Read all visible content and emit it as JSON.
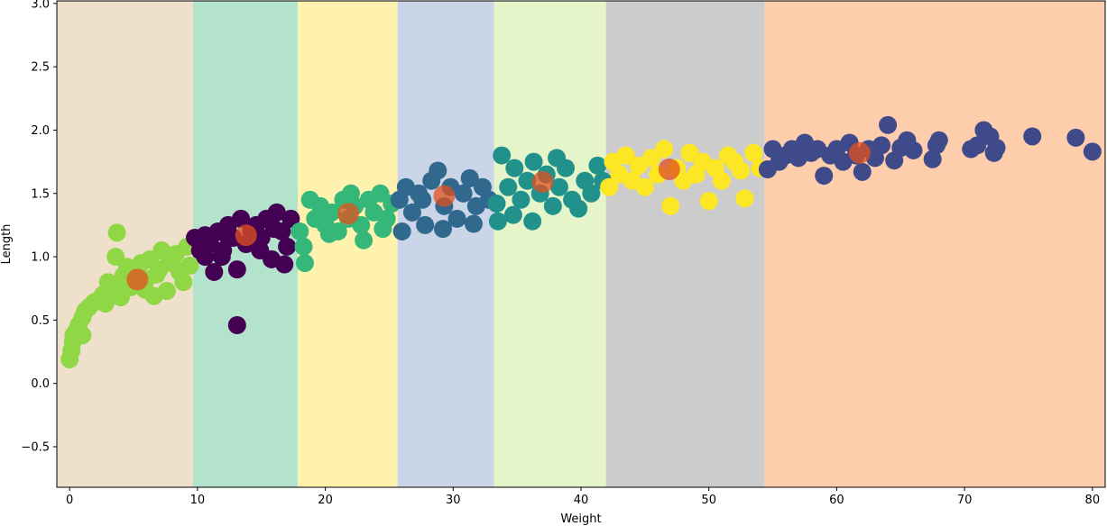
{
  "chart_data": {
    "type": "scatter",
    "title": "",
    "xlabel": "Weight",
    "ylabel": "Length",
    "xlim": [
      -1,
      81
    ],
    "ylim": [
      -0.82,
      3.02
    ],
    "grid": false,
    "legend": "none",
    "x_ticks": [
      0,
      10,
      20,
      30,
      40,
      50,
      60,
      70,
      80
    ],
    "x_tick_labels": [
      "0",
      "10",
      "20",
      "30",
      "40",
      "50",
      "60",
      "70",
      "80"
    ],
    "y_ticks": [
      -0.5,
      0.0,
      0.5,
      1.0,
      1.5,
      2.0,
      2.5,
      3.0
    ],
    "y_tick_labels": [
      "−0.5",
      "0.0",
      "0.5",
      "1.0",
      "1.5",
      "2.0",
      "2.5",
      "3.0"
    ],
    "regions": [
      {
        "x_start": -1,
        "x_end": 9.65,
        "color": "#efe0cc"
      },
      {
        "x_start": 9.65,
        "x_end": 17.85,
        "color": "#b3e2cd"
      },
      {
        "x_start": 17.85,
        "x_end": 25.65,
        "color": "#fff2ae"
      },
      {
        "x_start": 25.65,
        "x_end": 33.2,
        "color": "#cbd5e8"
      },
      {
        "x_start": 33.2,
        "x_end": 41.95,
        "color": "#e6f5c9"
      },
      {
        "x_start": 41.95,
        "x_end": 54.35,
        "color": "#cccccc"
      },
      {
        "x_start": 54.35,
        "x_end": 81,
        "color": "#fdcdac"
      }
    ],
    "series": [
      {
        "color": "#8fd744",
        "points": [
          [
            0.0,
            0.19
          ],
          [
            0.15,
            0.26
          ],
          [
            0.25,
            0.33
          ],
          [
            0.3,
            0.38
          ],
          [
            0.5,
            0.41
          ],
          [
            0.7,
            0.46
          ],
          [
            1.0,
            0.38
          ],
          [
            1.0,
            0.52
          ],
          [
            1.2,
            0.57
          ],
          [
            1.5,
            0.6
          ],
          [
            1.9,
            0.64
          ],
          [
            2.3,
            0.66
          ],
          [
            2.6,
            0.7
          ],
          [
            2.8,
            0.63
          ],
          [
            3.0,
            0.8
          ],
          [
            3.3,
            0.75
          ],
          [
            3.6,
            1.0
          ],
          [
            3.7,
            1.19
          ],
          [
            3.9,
            0.78
          ],
          [
            4.2,
            0.85
          ],
          [
            4.5,
            0.92
          ],
          [
            4.8,
            0.76
          ],
          [
            5.2,
            0.88
          ],
          [
            5.6,
            0.95
          ],
          [
            6.0,
            0.82
          ],
          [
            6.3,
            0.98
          ],
          [
            6.6,
            0.69
          ],
          [
            7.0,
            0.9
          ],
          [
            7.2,
            1.05
          ],
          [
            7.6,
            0.73
          ],
          [
            8.0,
            0.95
          ],
          [
            8.3,
            1.02
          ],
          [
            8.6,
            0.88
          ],
          [
            8.9,
            0.8
          ],
          [
            9.2,
            1.08
          ],
          [
            9.4,
            0.93
          ],
          [
            6.8,
            0.86
          ],
          [
            5.9,
            0.74
          ],
          [
            4.0,
            0.68
          ],
          [
            7.8,
            1.0
          ]
        ]
      },
      {
        "color": "#440154",
        "points": [
          [
            9.8,
            1.15
          ],
          [
            10.2,
            1.05
          ],
          [
            10.6,
            1.0
          ],
          [
            11.0,
            1.1
          ],
          [
            11.3,
            0.88
          ],
          [
            11.6,
            1.2
          ],
          [
            12.0,
            1.05
          ],
          [
            12.4,
            1.25
          ],
          [
            12.8,
            1.15
          ],
          [
            13.1,
            0.9
          ],
          [
            13.1,
            0.46
          ],
          [
            13.4,
            1.3
          ],
          [
            13.8,
            1.1
          ],
          [
            14.2,
            1.2
          ],
          [
            14.6,
            1.25
          ],
          [
            15.0,
            1.15
          ],
          [
            15.4,
            1.3
          ],
          [
            15.8,
            0.98
          ],
          [
            16.2,
            1.35
          ],
          [
            16.6,
            1.2
          ],
          [
            16.8,
            0.94
          ],
          [
            17.0,
            1.08
          ],
          [
            17.3,
            1.3
          ],
          [
            12.2,
            1.18
          ],
          [
            14.9,
            1.05
          ],
          [
            11.9,
            1.0
          ],
          [
            16.0,
            1.22
          ],
          [
            10.6,
            1.17
          ]
        ]
      },
      {
        "color": "#35b779",
        "points": [
          [
            18.0,
            1.2
          ],
          [
            18.3,
            1.08
          ],
          [
            18.4,
            0.95
          ],
          [
            18.8,
            1.45
          ],
          [
            19.2,
            1.3
          ],
          [
            19.6,
            1.4
          ],
          [
            20.0,
            1.25
          ],
          [
            20.5,
            1.35
          ],
          [
            21.0,
            1.2
          ],
          [
            21.4,
            1.45
          ],
          [
            21.8,
            1.3
          ],
          [
            22.3,
            1.4
          ],
          [
            22.8,
            1.25
          ],
          [
            23.0,
            1.13
          ],
          [
            23.4,
            1.45
          ],
          [
            23.8,
            1.35
          ],
          [
            24.3,
            1.5
          ],
          [
            24.8,
            1.3
          ],
          [
            25.2,
            1.42
          ],
          [
            20.3,
            1.18
          ],
          [
            22.0,
            1.5
          ],
          [
            24.5,
            1.22
          ]
        ]
      },
      {
        "color": "#31688e",
        "points": [
          [
            25.8,
            1.45
          ],
          [
            26.0,
            1.2
          ],
          [
            26.3,
            1.55
          ],
          [
            26.8,
            1.35
          ],
          [
            27.3,
            1.5
          ],
          [
            27.8,
            1.25
          ],
          [
            28.3,
            1.6
          ],
          [
            28.8,
            1.68
          ],
          [
            29.3,
            1.4
          ],
          [
            29.8,
            1.55
          ],
          [
            30.3,
            1.3
          ],
          [
            30.8,
            1.5
          ],
          [
            31.3,
            1.62
          ],
          [
            31.8,
            1.4
          ],
          [
            32.3,
            1.55
          ],
          [
            32.8,
            1.45
          ],
          [
            31.6,
            1.26
          ],
          [
            29.2,
            1.22
          ],
          [
            27.6,
            1.45
          ]
        ]
      },
      {
        "color": "#21918c",
        "points": [
          [
            33.4,
            1.42
          ],
          [
            33.5,
            1.28
          ],
          [
            33.8,
            1.8
          ],
          [
            34.3,
            1.55
          ],
          [
            34.8,
            1.7
          ],
          [
            35.3,
            1.45
          ],
          [
            35.8,
            1.6
          ],
          [
            36.3,
            1.75
          ],
          [
            36.8,
            1.5
          ],
          [
            37.3,
            1.65
          ],
          [
            37.8,
            1.4
          ],
          [
            38.3,
            1.55
          ],
          [
            38.8,
            1.7
          ],
          [
            39.3,
            1.45
          ],
          [
            39.8,
            1.38
          ],
          [
            40.3,
            1.6
          ],
          [
            40.8,
            1.5
          ],
          [
            41.3,
            1.72
          ],
          [
            41.7,
            1.6
          ],
          [
            36.2,
            1.28
          ],
          [
            34.7,
            1.33
          ],
          [
            38.1,
            1.78
          ]
        ]
      },
      {
        "color": "#fde725",
        "points": [
          [
            42.2,
            1.55
          ],
          [
            42.5,
            1.75
          ],
          [
            43.0,
            1.65
          ],
          [
            43.5,
            1.8
          ],
          [
            44.0,
            1.6
          ],
          [
            44.5,
            1.72
          ],
          [
            45.0,
            1.55
          ],
          [
            45.5,
            1.78
          ],
          [
            46.0,
            1.65
          ],
          [
            46.5,
            1.85
          ],
          [
            47.0,
            1.4
          ],
          [
            47.5,
            1.7
          ],
          [
            48.0,
            1.6
          ],
          [
            48.5,
            1.82
          ],
          [
            49.0,
            1.65
          ],
          [
            49.5,
            1.75
          ],
          [
            50.0,
            1.44
          ],
          [
            50.5,
            1.7
          ],
          [
            51.0,
            1.6
          ],
          [
            51.5,
            1.8
          ],
          [
            52.0,
            1.75
          ],
          [
            52.5,
            1.68
          ],
          [
            52.8,
            1.46
          ],
          [
            53.5,
            1.82
          ],
          [
            54.0,
            1.7
          ]
        ]
      },
      {
        "color": "#3e4a89",
        "points": [
          [
            54.6,
            1.69
          ],
          [
            55.0,
            1.85
          ],
          [
            55.5,
            1.75
          ],
          [
            56.0,
            1.8
          ],
          [
            56.5,
            1.85
          ],
          [
            57.0,
            1.78
          ],
          [
            57.5,
            1.9
          ],
          [
            58.0,
            1.82
          ],
          [
            58.5,
            1.85
          ],
          [
            59.0,
            1.64
          ],
          [
            59.5,
            1.8
          ],
          [
            60.0,
            1.85
          ],
          [
            60.5,
            1.75
          ],
          [
            61.0,
            1.9
          ],
          [
            61.5,
            1.8
          ],
          [
            62.0,
            1.67
          ],
          [
            62.5,
            1.85
          ],
          [
            63.0,
            1.78
          ],
          [
            63.5,
            1.88
          ],
          [
            64.0,
            2.04
          ],
          [
            64.5,
            1.76
          ],
          [
            65.0,
            1.86
          ],
          [
            65.5,
            1.92
          ],
          [
            66.0,
            1.84
          ],
          [
            67.5,
            1.77
          ],
          [
            67.8,
            1.88
          ],
          [
            68.0,
            1.92
          ],
          [
            70.5,
            1.85
          ],
          [
            71.0,
            1.88
          ],
          [
            71.5,
            2.0
          ],
          [
            72.0,
            1.95
          ],
          [
            72.3,
            1.82
          ],
          [
            72.5,
            1.86
          ],
          [
            75.3,
            1.95
          ],
          [
            78.7,
            1.94
          ],
          [
            80.0,
            1.83
          ]
        ]
      }
    ],
    "centers": {
      "color": "#e2501d",
      "points": [
        [
          5.3,
          0.82
        ],
        [
          13.8,
          1.17
        ],
        [
          21.8,
          1.34
        ],
        [
          29.3,
          1.48
        ],
        [
          37.0,
          1.59
        ],
        [
          46.9,
          1.69
        ],
        [
          61.8,
          1.82
        ]
      ]
    }
  }
}
